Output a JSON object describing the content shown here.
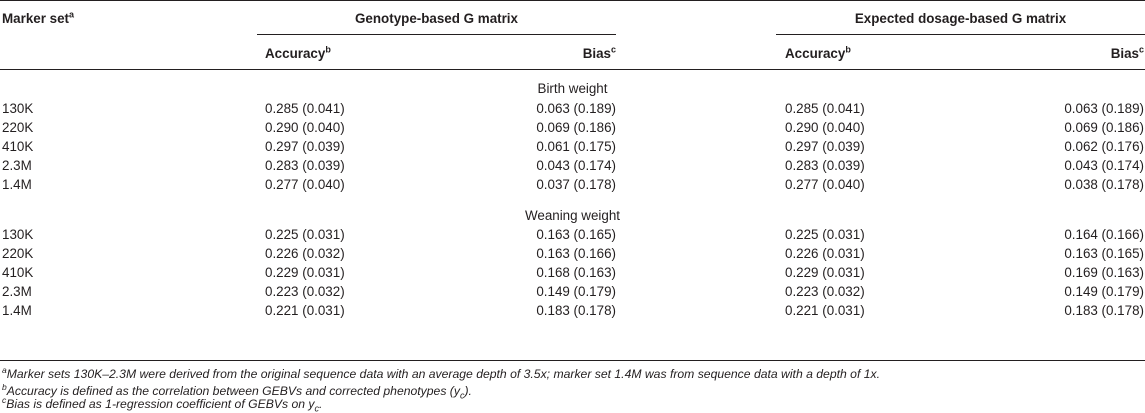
{
  "header": {
    "marker_set": "Marker set",
    "marker_set_sup": "a",
    "group1": "Genotype-based G matrix",
    "group2": "Expected dosage-based G matrix",
    "accuracy": "Accuracy",
    "accuracy_sup": "b",
    "bias": "Bias",
    "bias_sup": "c"
  },
  "sections": [
    {
      "title": "Birth weight",
      "rows": [
        {
          "set": "130K",
          "acc1": "0.285 (0.041)",
          "bias1": "0.063 (0.189)",
          "acc2": "0.285 (0.041)",
          "bias2": "0.063 (0.189)"
        },
        {
          "set": "220K",
          "acc1": "0.290 (0.040)",
          "bias1": "0.069 (0.186)",
          "acc2": "0.290 (0.040)",
          "bias2": "0.069 (0.186)"
        },
        {
          "set": "410K",
          "acc1": "0.297 (0.039)",
          "bias1": "0.061 (0.175)",
          "acc2": "0.297 (0.039)",
          "bias2": "0.062 (0.176)"
        },
        {
          "set": "2.3M",
          "acc1": "0.283 (0.039)",
          "bias1": "0.043 (0.174)",
          "acc2": "0.283 (0.039)",
          "bias2": "0.043 (0.174)"
        },
        {
          "set": "1.4M",
          "acc1": "0.277 (0.040)",
          "bias1": "0.037 (0.178)",
          "acc2": "0.277 (0.040)",
          "bias2": "0.038 (0.178)"
        }
      ]
    },
    {
      "title": "Weaning weight",
      "rows": [
        {
          "set": "130K",
          "acc1": "0.225 (0.031)",
          "bias1": "0.163 (0.165)",
          "acc2": "0.225 (0.031)",
          "bias2": "0.164 (0.166)"
        },
        {
          "set": "220K",
          "acc1": "0.226 (0.032)",
          "bias1": "0.163 (0.166)",
          "acc2": "0.226 (0.031)",
          "bias2": "0.163 (0.165)"
        },
        {
          "set": "410K",
          "acc1": "0.229 (0.031)",
          "bias1": "0.168 (0.163)",
          "acc2": "0.229 (0.031)",
          "bias2": "0.169 (0.163)"
        },
        {
          "set": "2.3M",
          "acc1": "0.223 (0.032)",
          "bias1": "0.149 (0.179)",
          "acc2": "0.223 (0.032)",
          "bias2": "0.149 (0.179)"
        },
        {
          "set": "1.4M",
          "acc1": "0.221 (0.031)",
          "bias1": "0.183 (0.178)",
          "acc2": "0.221 (0.031)",
          "bias2": "0.183 (0.178)"
        }
      ]
    }
  ],
  "footnotes": {
    "a": {
      "mark": "a",
      "text": "Marker sets 130K–2.3M were derived from the original sequence data with an average depth of 3.5x; marker set 1.4M was from sequence data with a depth of 1x."
    },
    "b": {
      "mark": "b",
      "text": "Accuracy is defined as the correlation between GEBVs and corrected phenotypes (y",
      "sub": "c",
      "tail": ")."
    },
    "c": {
      "mark": "c",
      "text": "Bias is defined as 1-regression coefficient of GEBVs on y",
      "sub": "c",
      "tail": "."
    }
  }
}
